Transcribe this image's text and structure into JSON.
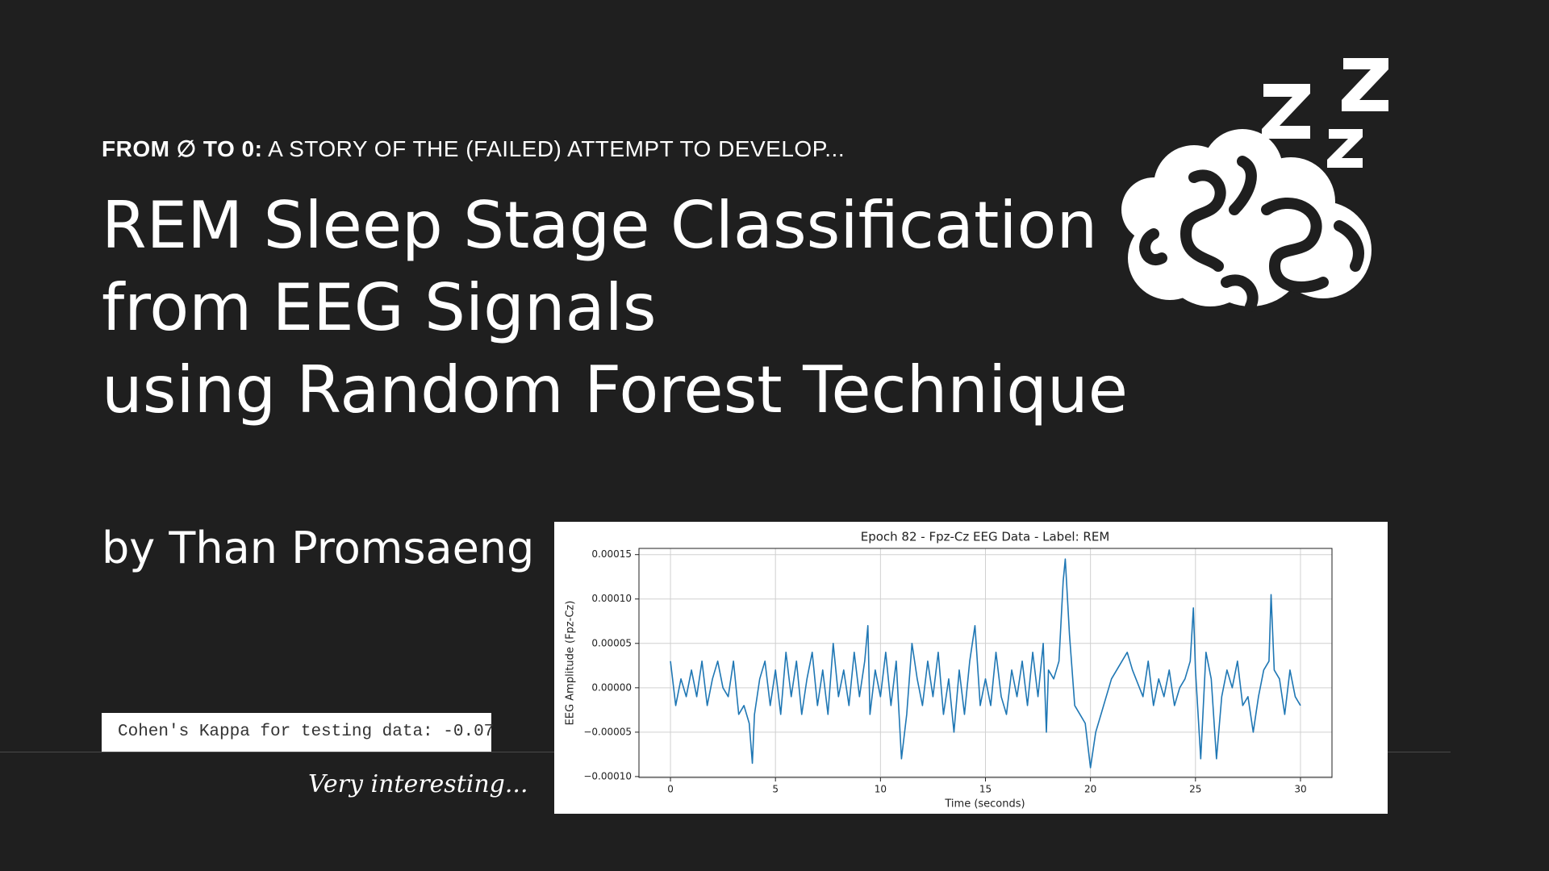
{
  "kicker": {
    "lead": "FROM ∅ TO 0:",
    "rest": "A STORY OF THE (FAILED) ATTEMPT TO DEVELOP..."
  },
  "title": {
    "lines": [
      "REM Sleep Stage Classification",
      "from EEG Signals",
      "using Random Forest Technique"
    ]
  },
  "author": "by Than Promsaeng",
  "result": "Cohen's Kappa for testing data: -0.07",
  "comment": "Very interesting...",
  "chart_data": {
    "type": "line",
    "title": "Epoch 82 - Fpz-Cz EEG Data - Label: REM",
    "x_label": "Time (seconds)",
    "y_label": "EEG Amplitude (Fpz-Cz)",
    "xlim": [
      -1.5,
      31.5
    ],
    "ylim": [
      -0.000101,
      0.000157
    ],
    "xticks": [
      0,
      5,
      10,
      15,
      20,
      25,
      30
    ],
    "yticks": [
      {
        "value": -0.0001,
        "label": "−0.00010"
      },
      {
        "value": -5e-05,
        "label": "−0.00005"
      },
      {
        "value": 0,
        "label": "0.00000"
      },
      {
        "value": 5e-05,
        "label": "0.00005"
      },
      {
        "value": 0.0001,
        "label": "0.00010"
      },
      0.00015
    ],
    "grid": true,
    "series": [
      {
        "color": "#1f77b4",
        "x": [
          0,
          0.25,
          0.5,
          0.75,
          1,
          1.25,
          1.5,
          1.75,
          2,
          2.25,
          2.5,
          2.75,
          3,
          3.25,
          3.5,
          3.75,
          3.9,
          4,
          4.25,
          4.5,
          4.75,
          5,
          5.25,
          5.5,
          5.75,
          6,
          6.25,
          6.5,
          6.75,
          7,
          7.25,
          7.5,
          7.75,
          8,
          8.25,
          8.5,
          8.75,
          9,
          9.25,
          9.4,
          9.5,
          9.75,
          10,
          10.25,
          10.5,
          10.75,
          11,
          11.25,
          11.5,
          11.75,
          12,
          12.25,
          12.5,
          12.75,
          13,
          13.25,
          13.5,
          13.75,
          14,
          14.25,
          14.5,
          14.75,
          15,
          15.25,
          15.5,
          15.75,
          16,
          16.25,
          16.5,
          16.75,
          17,
          17.25,
          17.5,
          17.75,
          17.9,
          18,
          18.25,
          18.5,
          18.7,
          18.8,
          19,
          19.25,
          19.5,
          19.75,
          20,
          20.25,
          20.5,
          20.75,
          21,
          21.25,
          21.5,
          21.75,
          22,
          22.5,
          22.75,
          23,
          23.25,
          23.5,
          23.75,
          24,
          24.25,
          24.5,
          24.75,
          24.9,
          25,
          25.25,
          25.5,
          25.75,
          26,
          26.25,
          26.5,
          26.75,
          27,
          27.25,
          27.5,
          27.75,
          28,
          28.25,
          28.5,
          28.6,
          28.75,
          29,
          29.25,
          29.5,
          29.75,
          30
        ],
        "values": [
          3e-05,
          -2e-05,
          1e-05,
          -1e-05,
          2e-05,
          -1e-05,
          3e-05,
          -2e-05,
          1e-05,
          3e-05,
          0,
          -1e-05,
          3e-05,
          -3e-05,
          -2e-05,
          -4e-05,
          -8.5e-05,
          -3e-05,
          1e-05,
          3e-05,
          -2e-05,
          2e-05,
          -3e-05,
          4e-05,
          -1e-05,
          3e-05,
          -3e-05,
          1e-05,
          4e-05,
          -2e-05,
          2e-05,
          -3e-05,
          5e-05,
          -1e-05,
          2e-05,
          -2e-05,
          4e-05,
          -1e-05,
          3e-05,
          7e-05,
          -3e-05,
          2e-05,
          -1e-05,
          4e-05,
          -2e-05,
          3e-05,
          -8e-05,
          -3e-05,
          5e-05,
          1e-05,
          -2e-05,
          3e-05,
          -1e-05,
          4e-05,
          -3e-05,
          1e-05,
          -5e-05,
          2e-05,
          -3e-05,
          3e-05,
          7e-05,
          -2e-05,
          1e-05,
          -2e-05,
          4e-05,
          -1e-05,
          -3e-05,
          2e-05,
          -1e-05,
          3e-05,
          -2e-05,
          4e-05,
          -1e-05,
          5e-05,
          -5e-05,
          2e-05,
          1e-05,
          3e-05,
          0.00012,
          0.000145,
          6e-05,
          -2e-05,
          -3e-05,
          -4e-05,
          -9e-05,
          -5e-05,
          -3e-05,
          -1e-05,
          1e-05,
          2e-05,
          3e-05,
          4e-05,
          2e-05,
          -1e-05,
          3e-05,
          -2e-05,
          1e-05,
          -1e-05,
          2e-05,
          -2e-05,
          0,
          1e-05,
          3e-05,
          9e-05,
          2e-05,
          -8e-05,
          4e-05,
          1e-05,
          -8e-05,
          -1e-05,
          2e-05,
          0,
          3e-05,
          -2e-05,
          -1e-05,
          -5e-05,
          -1e-05,
          2e-05,
          3e-05,
          0.000105,
          2e-05,
          1e-05,
          -3e-05,
          2e-05,
          -1e-05,
          -2e-05
        ]
      }
    ]
  }
}
